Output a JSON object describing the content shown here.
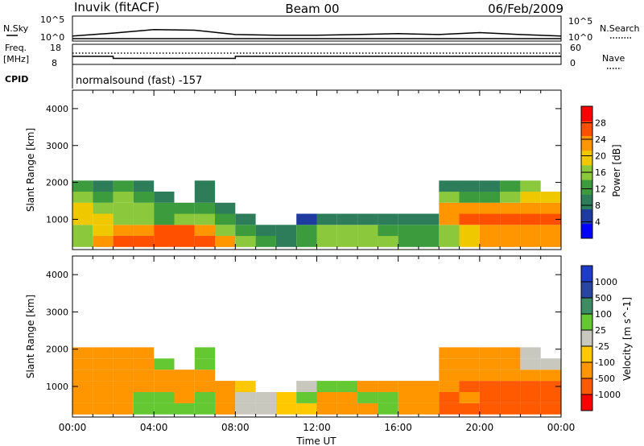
{
  "header": {
    "station": "Inuvik (fitACF)",
    "beam": "Beam 00",
    "date": "06/Feb/2009"
  },
  "left_labels": {
    "nsky": "N.Sky",
    "freq_line1": "Freq.",
    "freq_line2": "[MHz]",
    "cpid": "CPID",
    "nsky_top": "10^5",
    "nsky_bottom": "10^0",
    "freq_top": "18",
    "freq_bottom": "8"
  },
  "right_labels": {
    "nsearch": "N.Search",
    "nave": "Nave",
    "nsearch_top": "10^5",
    "nsearch_bottom": "10^0",
    "nave_top": "60",
    "nave_bottom": "0"
  },
  "cpid_text": "normalsound (fast) -157",
  "x_axis": {
    "label": "Time UT",
    "ticks": [
      "00:00",
      "04:00",
      "08:00",
      "12:00",
      "16:00",
      "20:00",
      "00:00"
    ]
  },
  "y_axis": {
    "label": "Slant Range [km]",
    "ticks": [
      "1000",
      "2000",
      "3000",
      "4000"
    ]
  },
  "colors": {
    "power_scale": [
      "#0000ff",
      "#1e3ca0",
      "#2d7d5a",
      "#3c9b3c",
      "#8cc83c",
      "#f0c800",
      "#ff9600",
      "#ff5000",
      "#ff0000"
    ],
    "velocity_scale": [
      "#ff0000",
      "#ff5a00",
      "#ff9600",
      "#ffc800",
      "#c8c8be",
      "#64c832",
      "#3c8c64",
      "#2846a0",
      "#1e3cc8"
    ]
  },
  "chart_data": [
    {
      "type": "line",
      "title": "",
      "panel": "N.Sky / N.Search",
      "x": [
        0,
        2,
        4,
        6,
        8,
        10,
        12,
        14,
        16,
        18,
        20,
        22,
        24
      ],
      "series": [
        {
          "name": "N.Sky",
          "values": [
            10,
            40,
            200,
            150,
            20,
            15,
            15,
            20,
            30,
            20,
            50,
            20,
            10
          ]
        },
        {
          "name": "N.Search",
          "values": [
            1,
            1,
            1,
            1,
            1,
            1,
            1,
            1,
            1,
            1,
            1,
            1,
            1
          ]
        }
      ],
      "ylim": [
        1,
        100000
      ],
      "yscale": "log"
    },
    {
      "type": "line",
      "title": "",
      "panel": "Freq. / Nave",
      "x": [
        0,
        2,
        4,
        6,
        8,
        10,
        12,
        14,
        16,
        18,
        20,
        22,
        24
      ],
      "series": [
        {
          "name": "Freq.",
          "values": [
            12,
            11,
            11,
            11,
            12,
            12,
            12,
            12,
            12,
            12,
            12,
            12,
            12
          ]
        },
        {
          "name": "Nave",
          "values": [
            25,
            25,
            25,
            25,
            25,
            25,
            25,
            25,
            25,
            25,
            25,
            25,
            25
          ]
        }
      ],
      "ylim": [
        8,
        18
      ]
    },
    {
      "type": "heatmap",
      "title": "",
      "xlabel": "Time UT",
      "ylabel": "Slant Range [km]",
      "colorbar_label": "Power [dB]",
      "colorbar_ticks": [
        "4",
        "8",
        "12",
        "16",
        "20",
        "24",
        "28"
      ],
      "xlim": [
        0,
        24
      ],
      "ylim": [
        180,
        4500
      ],
      "x_hours": [
        0,
        1,
        2,
        3,
        4,
        5,
        6,
        7,
        8,
        9,
        10,
        11,
        12,
        13,
        14,
        15,
        16,
        17,
        18,
        19,
        20,
        21,
        22,
        23
      ],
      "range_bands_km": [
        400,
        700,
        1000,
        1300,
        1600,
        1900
      ],
      "values": [
        [
          16,
          24,
          28,
          28,
          28,
          28,
          28,
          24,
          16,
          12,
          8,
          12,
          16,
          16,
          16,
          16,
          12,
          12,
          16,
          20,
          24,
          24,
          24,
          24
        ],
        [
          16,
          20,
          24,
          24,
          28,
          28,
          24,
          16,
          12,
          8,
          8,
          12,
          16,
          16,
          16,
          12,
          12,
          12,
          16,
          20,
          24,
          24,
          24,
          24
        ],
        [
          20,
          20,
          16,
          16,
          12,
          16,
          16,
          12,
          8,
          0,
          0,
          4,
          8,
          8,
          8,
          8,
          8,
          8,
          24,
          28,
          28,
          28,
          28,
          28
        ],
        [
          20,
          16,
          16,
          16,
          12,
          12,
          12,
          8,
          0,
          0,
          0,
          0,
          0,
          0,
          0,
          0,
          0,
          0,
          24,
          24,
          24,
          24,
          24,
          24
        ],
        [
          16,
          12,
          16,
          12,
          8,
          0,
          8,
          0,
          0,
          0,
          0,
          0,
          0,
          0,
          0,
          0,
          0,
          0,
          16,
          12,
          12,
          16,
          20,
          20
        ],
        [
          12,
          8,
          12,
          8,
          0,
          0,
          8,
          0,
          0,
          0,
          0,
          0,
          0,
          0,
          0,
          0,
          0,
          0,
          8,
          8,
          8,
          12,
          16,
          0
        ]
      ]
    },
    {
      "type": "heatmap",
      "title": "",
      "xlabel": "Time UT",
      "ylabel": "Slant Range [km]",
      "colorbar_label": "Velocity [m s^-1]",
      "colorbar_ticks": [
        "-1000",
        "-500",
        "-100",
        "-25",
        "25",
        "100",
        "500",
        "1000"
      ],
      "xlim": [
        0,
        24
      ],
      "ylim": [
        180,
        4500
      ],
      "x_hours": [
        0,
        1,
        2,
        3,
        4,
        5,
        6,
        7,
        8,
        9,
        10,
        11,
        12,
        13,
        14,
        15,
        16,
        17,
        18,
        19,
        20,
        21,
        22,
        23
      ],
      "range_bands_km": [
        400,
        700,
        1000,
        1300,
        1600,
        1900
      ],
      "values": [
        [
          -100,
          -100,
          -100,
          100,
          100,
          100,
          100,
          -100,
          25,
          25,
          -25,
          -25,
          -100,
          -100,
          -100,
          100,
          -100,
          -100,
          -500,
          -500,
          -500,
          -500,
          -500,
          -500
        ],
        [
          -100,
          -100,
          -100,
          100,
          100,
          -100,
          100,
          -100,
          25,
          25,
          -25,
          100,
          -100,
          -100,
          100,
          100,
          -100,
          -100,
          -500,
          -100,
          -500,
          -500,
          -500,
          -500
        ],
        [
          -100,
          -100,
          -100,
          -100,
          -100,
          -100,
          -100,
          -100,
          -25,
          0,
          0,
          25,
          100,
          100,
          -100,
          -100,
          -100,
          -100,
          -100,
          -500,
          -500,
          -500,
          -500,
          -500
        ],
        [
          -100,
          -100,
          -100,
          -100,
          -100,
          -100,
          -100,
          0,
          0,
          0,
          0,
          0,
          0,
          0,
          0,
          0,
          0,
          0,
          -100,
          -100,
          -100,
          -100,
          -100,
          -100
        ],
        [
          -100,
          -100,
          -100,
          -100,
          100,
          0,
          100,
          0,
          0,
          0,
          0,
          0,
          0,
          0,
          0,
          0,
          0,
          0,
          -100,
          -100,
          -100,
          -100,
          25,
          25
        ],
        [
          -100,
          -100,
          -100,
          -100,
          0,
          0,
          100,
          0,
          0,
          0,
          0,
          0,
          0,
          0,
          0,
          0,
          0,
          0,
          -100,
          -100,
          -100,
          -100,
          25,
          0
        ]
      ]
    }
  ]
}
